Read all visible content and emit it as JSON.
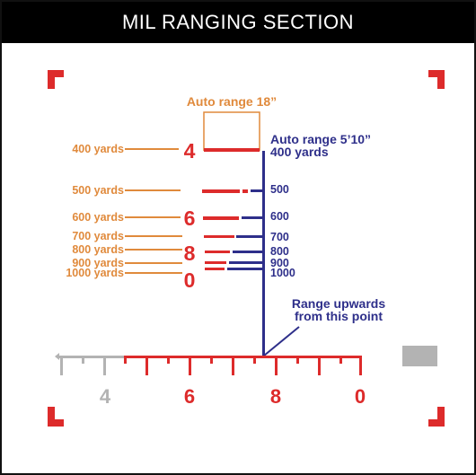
{
  "title": "MIL RANGING SECTION",
  "colors": {
    "orange": "#e08a3c",
    "red": "#dd2b2b",
    "blue": "#2e2f8a",
    "gray": "#b3b3b3",
    "black": "#000000"
  },
  "annotations": {
    "auto_range_18": "Auto range 18”",
    "auto_range_5_10_line1": "Auto range 5’10”",
    "auto_range_5_10_line2": "400 yards",
    "range_upwards_line1": "Range upwards",
    "range_upwards_line2": "from this point"
  },
  "yard_labels": [
    "400 yards",
    "500 yards",
    "600 yards",
    "700 yards",
    "800 yards",
    "900 yards",
    "1000 yards"
  ],
  "reticle_numbers": [
    "4",
    "6",
    "8",
    "0"
  ],
  "range_values": [
    "500",
    "600",
    "700",
    "800",
    "900",
    "1000"
  ],
  "scale_numbers": [
    "4",
    "6",
    "8",
    "0"
  ]
}
